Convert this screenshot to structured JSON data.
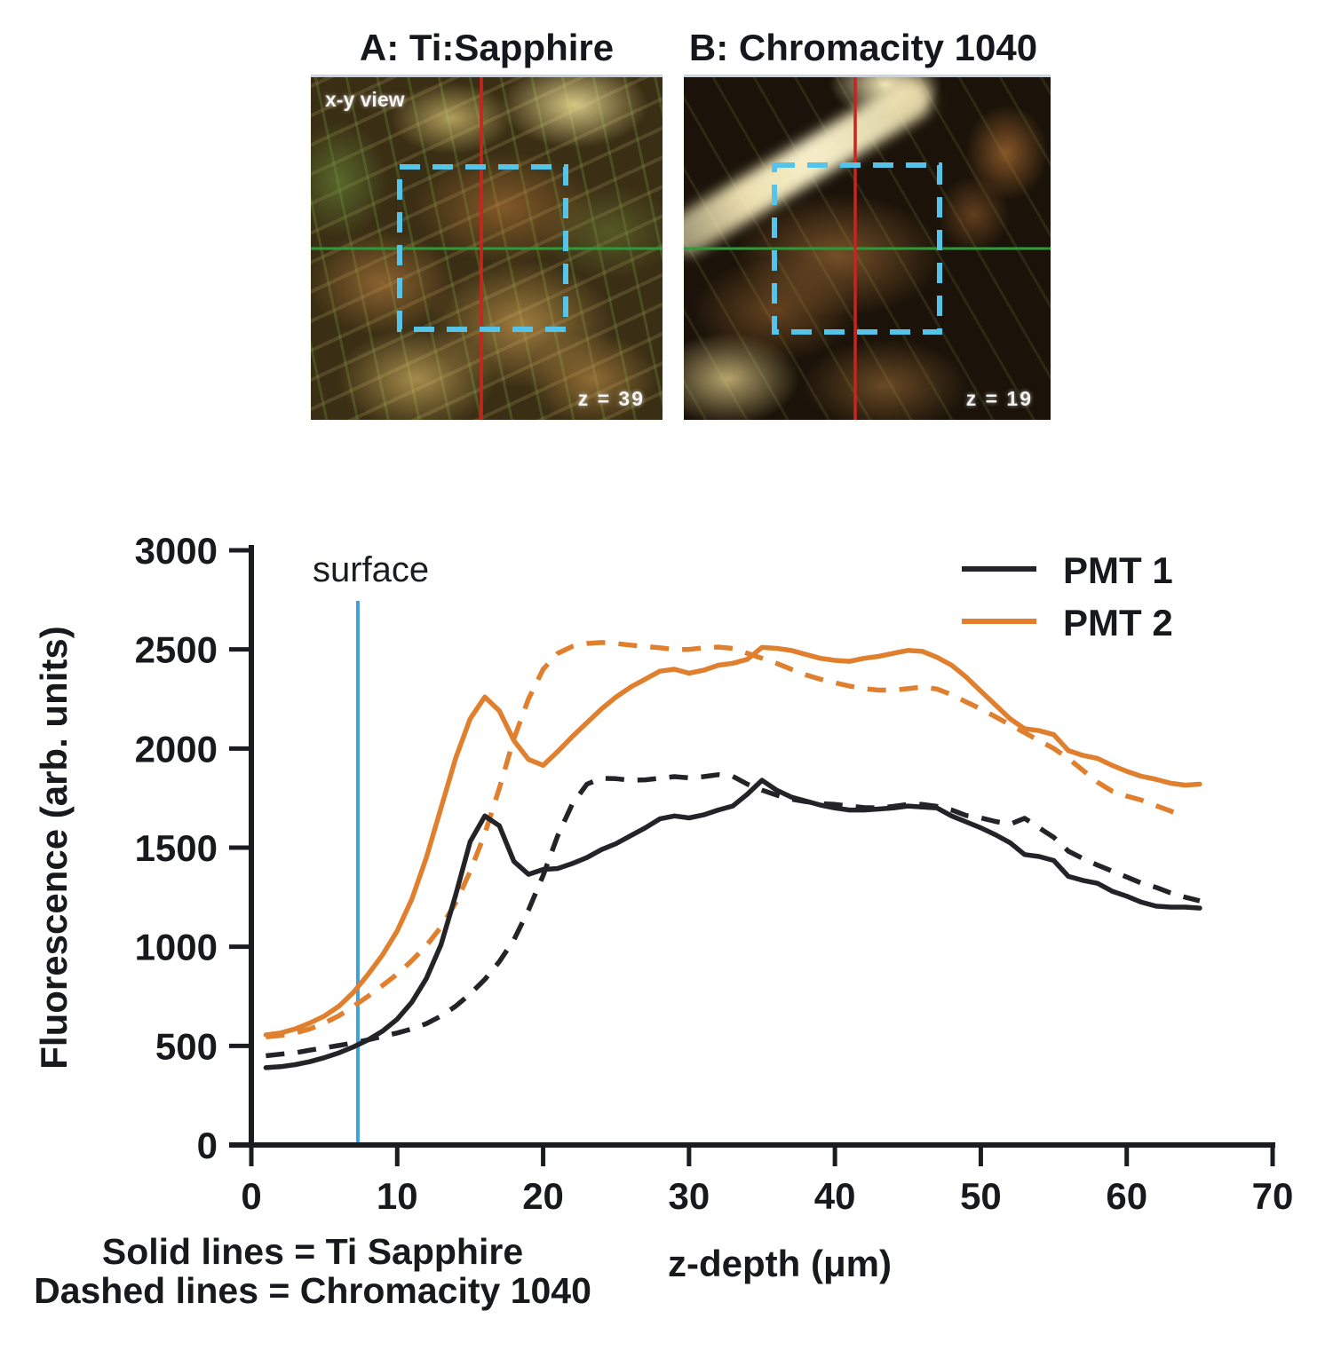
{
  "figures": {
    "panelA": {
      "title": "A: Ti:Sapphire",
      "corner_label": "x-y view",
      "depth_label": "z = 39"
    },
    "panelB": {
      "title": "B: Chromacity 1040",
      "depth_label": "z = 19"
    },
    "overlay_colors": {
      "crosshair_red": "#cc231c",
      "crosshair_green": "#2e9b3a",
      "roi_cyan": "#56c3e8"
    }
  },
  "chart_data": {
    "type": "line",
    "title": "",
    "xlabel": "z-depth (μm)",
    "ylabel": "Fluorescence (arb. units)",
    "xlim": [
      0,
      70
    ],
    "ylim": [
      0,
      3000
    ],
    "xticks": [
      0,
      10,
      20,
      30,
      40,
      50,
      60,
      70
    ],
    "yticks": [
      0,
      500,
      1000,
      1500,
      2000,
      2500,
      3000
    ],
    "grid": false,
    "axis_color": "#1a1c1f",
    "legend_position": "upper right",
    "legend": [
      {
        "label": "PMT 1",
        "color": "#242428"
      },
      {
        "label": "PMT 2",
        "color": "#e07f2e"
      }
    ],
    "annotation": {
      "surface_label": "surface",
      "surface_x": 7.3,
      "surface_top_value": 2745,
      "surface_color": "#41a0dc"
    },
    "footnotes": [
      "Solid lines = Ti Sapphire",
      "Dashed lines = Chromacity 1040"
    ],
    "series": [
      {
        "name": "PMT 2 — Chromacity 1040",
        "pmt": "PMT 2",
        "laser": "Chromacity 1040",
        "color": "#e07f2e",
        "style": "dashed",
        "points": [
          [
            1,
            545
          ],
          [
            2,
            552
          ],
          [
            3,
            565
          ],
          [
            4,
            585
          ],
          [
            5,
            615
          ],
          [
            6,
            652
          ],
          [
            7,
            700
          ],
          [
            8,
            750
          ],
          [
            9,
            805
          ],
          [
            10,
            862
          ],
          [
            11,
            930
          ],
          [
            12,
            1005
          ],
          [
            13,
            1100
          ],
          [
            14,
            1220
          ],
          [
            15,
            1380
          ],
          [
            16,
            1570
          ],
          [
            17,
            1800
          ],
          [
            18,
            2050
          ],
          [
            19,
            2250
          ],
          [
            20,
            2400
          ],
          [
            21,
            2480
          ],
          [
            22,
            2515
          ],
          [
            23,
            2530
          ],
          [
            24,
            2535
          ],
          [
            25,
            2530
          ],
          [
            26,
            2522
          ],
          [
            27,
            2515
          ],
          [
            28,
            2508
          ],
          [
            29,
            2500
          ],
          [
            30,
            2500
          ],
          [
            31,
            2508
          ],
          [
            32,
            2512
          ],
          [
            33,
            2505
          ],
          [
            34,
            2480
          ],
          [
            35,
            2455
          ],
          [
            36,
            2430
          ],
          [
            37,
            2400
          ],
          [
            38,
            2372
          ],
          [
            39,
            2350
          ],
          [
            40,
            2332
          ],
          [
            41,
            2315
          ],
          [
            42,
            2302
          ],
          [
            43,
            2295
          ],
          [
            44,
            2295
          ],
          [
            45,
            2302
          ],
          [
            46,
            2310
          ],
          [
            47,
            2300
          ],
          [
            48,
            2272
          ],
          [
            49,
            2235
          ],
          [
            50,
            2200
          ],
          [
            51,
            2160
          ],
          [
            52,
            2120
          ],
          [
            53,
            2080
          ],
          [
            54,
            2040
          ],
          [
            55,
            2000
          ],
          [
            56,
            1950
          ],
          [
            57,
            1890
          ],
          [
            58,
            1830
          ],
          [
            59,
            1785
          ],
          [
            60,
            1760
          ],
          [
            61,
            1740
          ],
          [
            62,
            1712
          ],
          [
            63,
            1685
          ],
          [
            64,
            1655
          ]
        ]
      },
      {
        "name": "PMT 2 — Ti Sapphire",
        "pmt": "PMT 2",
        "laser": "Ti Sapphire",
        "color": "#e07f2e",
        "style": "solid",
        "points": [
          [
            1,
            555
          ],
          [
            2,
            565
          ],
          [
            3,
            585
          ],
          [
            4,
            615
          ],
          [
            5,
            650
          ],
          [
            6,
            700
          ],
          [
            7,
            770
          ],
          [
            8,
            860
          ],
          [
            9,
            960
          ],
          [
            10,
            1080
          ],
          [
            11,
            1240
          ],
          [
            12,
            1450
          ],
          [
            13,
            1700
          ],
          [
            14,
            1950
          ],
          [
            15,
            2150
          ],
          [
            16,
            2260
          ],
          [
            17,
            2190
          ],
          [
            18,
            2040
          ],
          [
            19,
            1945
          ],
          [
            20,
            1915
          ],
          [
            21,
            1985
          ],
          [
            22,
            2060
          ],
          [
            23,
            2130
          ],
          [
            24,
            2200
          ],
          [
            25,
            2260
          ],
          [
            26,
            2310
          ],
          [
            27,
            2350
          ],
          [
            28,
            2390
          ],
          [
            29,
            2400
          ],
          [
            30,
            2380
          ],
          [
            31,
            2395
          ],
          [
            32,
            2420
          ],
          [
            33,
            2430
          ],
          [
            34,
            2450
          ],
          [
            35,
            2510
          ],
          [
            36,
            2505
          ],
          [
            37,
            2495
          ],
          [
            38,
            2475
          ],
          [
            39,
            2455
          ],
          [
            40,
            2445
          ],
          [
            41,
            2440
          ],
          [
            42,
            2455
          ],
          [
            43,
            2465
          ],
          [
            44,
            2480
          ],
          [
            45,
            2495
          ],
          [
            46,
            2490
          ],
          [
            47,
            2460
          ],
          [
            48,
            2420
          ],
          [
            49,
            2360
          ],
          [
            50,
            2290
          ],
          [
            51,
            2220
          ],
          [
            52,
            2150
          ],
          [
            53,
            2100
          ],
          [
            54,
            2090
          ],
          [
            55,
            2070
          ],
          [
            56,
            1990
          ],
          [
            57,
            1965
          ],
          [
            58,
            1950
          ],
          [
            59,
            1915
          ],
          [
            60,
            1885
          ],
          [
            61,
            1860
          ],
          [
            62,
            1845
          ],
          [
            63,
            1825
          ],
          [
            64,
            1815
          ],
          [
            65,
            1820
          ]
        ]
      },
      {
        "name": "PMT 1 — Chromacity 1040",
        "pmt": "PMT 1",
        "laser": "Chromacity 1040",
        "color": "#242428",
        "style": "dashed",
        "points": [
          [
            1,
            450
          ],
          [
            2,
            458
          ],
          [
            3,
            465
          ],
          [
            4,
            478
          ],
          [
            5,
            490
          ],
          [
            6,
            502
          ],
          [
            7,
            515
          ],
          [
            8,
            530
          ],
          [
            9,
            548
          ],
          [
            10,
            565
          ],
          [
            11,
            585
          ],
          [
            12,
            612
          ],
          [
            13,
            650
          ],
          [
            14,
            700
          ],
          [
            15,
            762
          ],
          [
            16,
            835
          ],
          [
            17,
            925
          ],
          [
            18,
            1035
          ],
          [
            19,
            1185
          ],
          [
            20,
            1360
          ],
          [
            21,
            1560
          ],
          [
            22,
            1720
          ],
          [
            23,
            1820
          ],
          [
            24,
            1850
          ],
          [
            25,
            1848
          ],
          [
            26,
            1840
          ],
          [
            27,
            1842
          ],
          [
            28,
            1850
          ],
          [
            29,
            1858
          ],
          [
            30,
            1852
          ],
          [
            31,
            1858
          ],
          [
            32,
            1868
          ],
          [
            33,
            1860
          ],
          [
            34,
            1820
          ],
          [
            35,
            1790
          ],
          [
            36,
            1765
          ],
          [
            37,
            1745
          ],
          [
            38,
            1732
          ],
          [
            39,
            1722
          ],
          [
            40,
            1718
          ],
          [
            41,
            1710
          ],
          [
            42,
            1702
          ],
          [
            43,
            1700
          ],
          [
            44,
            1708
          ],
          [
            45,
            1718
          ],
          [
            46,
            1718
          ],
          [
            47,
            1708
          ],
          [
            48,
            1690
          ],
          [
            49,
            1662
          ],
          [
            50,
            1650
          ],
          [
            51,
            1632
          ],
          [
            52,
            1618
          ],
          [
            53,
            1648
          ],
          [
            54,
            1600
          ],
          [
            55,
            1552
          ],
          [
            56,
            1482
          ],
          [
            57,
            1445
          ],
          [
            58,
            1412
          ],
          [
            59,
            1382
          ],
          [
            60,
            1352
          ],
          [
            61,
            1322
          ],
          [
            62,
            1300
          ],
          [
            63,
            1272
          ],
          [
            64,
            1250
          ],
          [
            65,
            1232
          ]
        ]
      },
      {
        "name": "PMT 1 — Ti Sapphire",
        "pmt": "PMT 1",
        "laser": "Ti Sapphire",
        "color": "#242428",
        "style": "solid",
        "points": [
          [
            1,
            390
          ],
          [
            2,
            395
          ],
          [
            3,
            405
          ],
          [
            4,
            420
          ],
          [
            5,
            440
          ],
          [
            6,
            465
          ],
          [
            7,
            495
          ],
          [
            8,
            530
          ],
          [
            9,
            575
          ],
          [
            10,
            635
          ],
          [
            11,
            720
          ],
          [
            12,
            840
          ],
          [
            13,
            1010
          ],
          [
            14,
            1260
          ],
          [
            15,
            1530
          ],
          [
            16,
            1660
          ],
          [
            17,
            1610
          ],
          [
            18,
            1430
          ],
          [
            19,
            1365
          ],
          [
            20,
            1390
          ],
          [
            21,
            1395
          ],
          [
            22,
            1420
          ],
          [
            23,
            1450
          ],
          [
            24,
            1490
          ],
          [
            25,
            1520
          ],
          [
            26,
            1560
          ],
          [
            27,
            1600
          ],
          [
            28,
            1645
          ],
          [
            29,
            1660
          ],
          [
            30,
            1650
          ],
          [
            31,
            1665
          ],
          [
            32,
            1690
          ],
          [
            33,
            1710
          ],
          [
            34,
            1770
          ],
          [
            35,
            1840
          ],
          [
            36,
            1790
          ],
          [
            37,
            1755
          ],
          [
            38,
            1735
          ],
          [
            39,
            1715
          ],
          [
            40,
            1700
          ],
          [
            41,
            1690
          ],
          [
            42,
            1690
          ],
          [
            43,
            1695
          ],
          [
            44,
            1700
          ],
          [
            45,
            1710
          ],
          [
            46,
            1705
          ],
          [
            47,
            1700
          ],
          [
            48,
            1660
          ],
          [
            49,
            1630
          ],
          [
            50,
            1600
          ],
          [
            51,
            1565
          ],
          [
            52,
            1525
          ],
          [
            53,
            1465
          ],
          [
            54,
            1455
          ],
          [
            55,
            1435
          ],
          [
            56,
            1355
          ],
          [
            57,
            1335
          ],
          [
            58,
            1320
          ],
          [
            59,
            1280
          ],
          [
            60,
            1255
          ],
          [
            61,
            1225
          ],
          [
            62,
            1205
          ],
          [
            63,
            1200
          ],
          [
            64,
            1200
          ],
          [
            65,
            1195
          ]
        ]
      }
    ]
  }
}
